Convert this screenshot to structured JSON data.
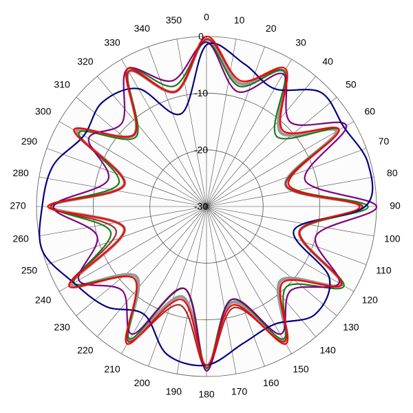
{
  "chart_data": {
    "type": "polar",
    "theta": [
      0,
      15,
      30,
      45,
      60,
      75,
      90,
      105,
      120,
      135,
      150,
      165,
      180,
      195,
      210,
      225,
      240,
      255,
      270,
      285,
      300,
      315,
      330,
      345
    ],
    "rlim": [
      -30,
      0
    ],
    "rticks": [
      0,
      -10,
      -20,
      -30
    ],
    "angle_ticks": [
      0,
      10,
      20,
      30,
      40,
      50,
      60,
      70,
      80,
      90,
      100,
      110,
      120,
      130,
      140,
      150,
      160,
      170,
      180,
      190,
      200,
      210,
      220,
      230,
      240,
      250,
      260,
      270,
      280,
      290,
      300,
      310,
      320,
      330,
      340,
      350
    ],
    "grid": true,
    "series": [
      {
        "color": "#999999",
        "values": [
          -0.5,
          -7.5,
          -2.5,
          -11.5,
          -3.5,
          -15.5,
          -2.5,
          -13,
          -2.5,
          -11.5,
          -2.5,
          -12.5,
          -1.5,
          -13.5,
          -2.5,
          -12.5,
          -2.5,
          -15,
          -2.5,
          -15,
          -3.5,
          -12,
          -2.5,
          -9
        ]
      },
      {
        "color": "#a52a2a",
        "values": [
          -0.5,
          -7,
          -2.5,
          -11,
          -3,
          -15.5,
          -2.5,
          -13,
          -2.5,
          -11,
          -2.5,
          -11.5,
          -1.5,
          -12,
          -2.5,
          -12,
          -2,
          -13.5,
          -2.5,
          -15,
          -3,
          -12,
          -2.5,
          -9
        ]
      },
      {
        "color": "#1a7a1a",
        "values": [
          -1,
          -8,
          -2.5,
          -12.5,
          -3,
          -15,
          -1.5,
          -13,
          -2,
          -10,
          -3,
          -13,
          -1.5,
          -15,
          -3,
          -12,
          -3,
          -12.5,
          -3,
          -14,
          -4,
          -12.5,
          -2,
          -8
        ]
      },
      {
        "color": "#800080",
        "values": [
          -1,
          -9,
          -3,
          -9,
          -1.5,
          -12,
          0,
          -10,
          -3,
          -9,
          -4,
          -13,
          -1,
          -15,
          -4,
          -9,
          -4,
          -10,
          -3,
          -12,
          -6,
          -9,
          -2,
          -7
        ]
      },
      {
        "color": "#000080",
        "values": [
          -1.5,
          -4,
          -6,
          -1.5,
          -2,
          -0.5,
          -2,
          -14,
          -5,
          -3,
          -6,
          -5,
          -2,
          -3,
          -8,
          -5,
          -3,
          0,
          -1,
          -2,
          -5,
          -4,
          -6,
          -13
        ]
      },
      {
        "color": "#ff0000",
        "values": [
          0,
          -7,
          -2,
          -11,
          -3,
          -15,
          -3,
          -13,
          -2.5,
          -11,
          -2,
          -12,
          -2,
          -13,
          -2,
          -12,
          -2,
          -15,
          -2,
          -15,
          -3,
          -12,
          -2,
          -9
        ]
      }
    ]
  }
}
